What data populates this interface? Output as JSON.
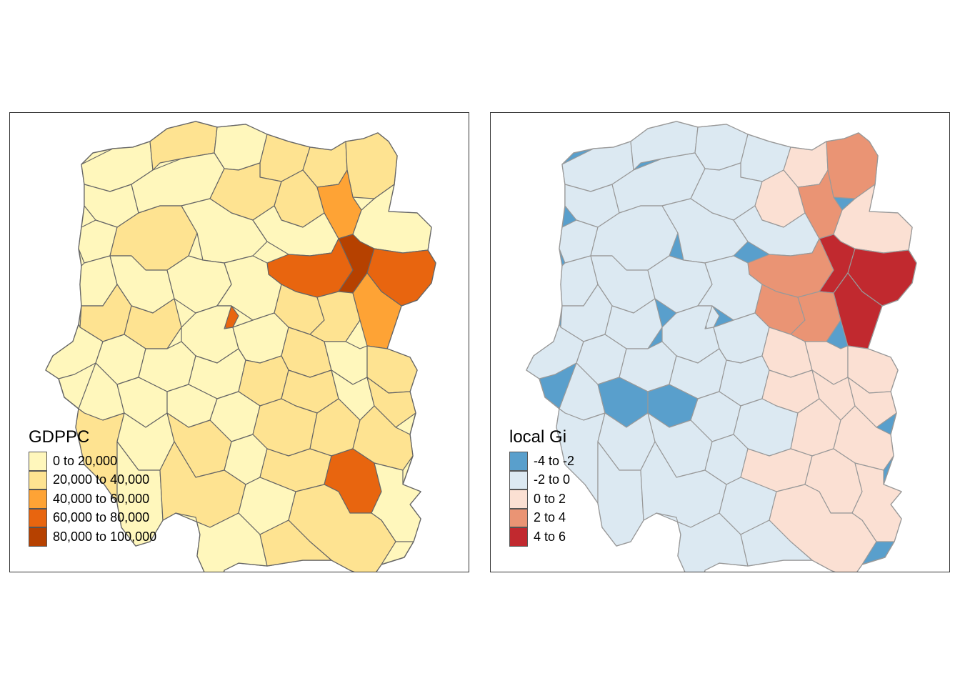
{
  "maps": [
    {
      "legend_title": "GDPPC",
      "border_color": "#666666",
      "classes": [
        {
          "label": "0 to 20,000",
          "color": "#fff7bc"
        },
        {
          "label": "20,000 to 40,000",
          "color": "#fee391"
        },
        {
          "label": "40,000 to 60,000",
          "color": "#fea335"
        },
        {
          "label": "60,000 to 80,000",
          "color": "#e8650f"
        },
        {
          "label": "80,000 to 100,000",
          "color": "#b64100"
        }
      ]
    },
    {
      "legend_title": "local Gi",
      "border_color": "#999999",
      "classes": [
        {
          "label": "-4 to -2",
          "color": "#599fcc"
        },
        {
          "label": "-2 to 0",
          "color": "#dce9f2"
        },
        {
          "label": "0 to 2",
          "color": "#fbe0d3"
        },
        {
          "label": "2 to 4",
          "color": "#ea9474"
        },
        {
          "label": "4 to 6",
          "color": "#c1292f"
        }
      ]
    }
  ]
}
